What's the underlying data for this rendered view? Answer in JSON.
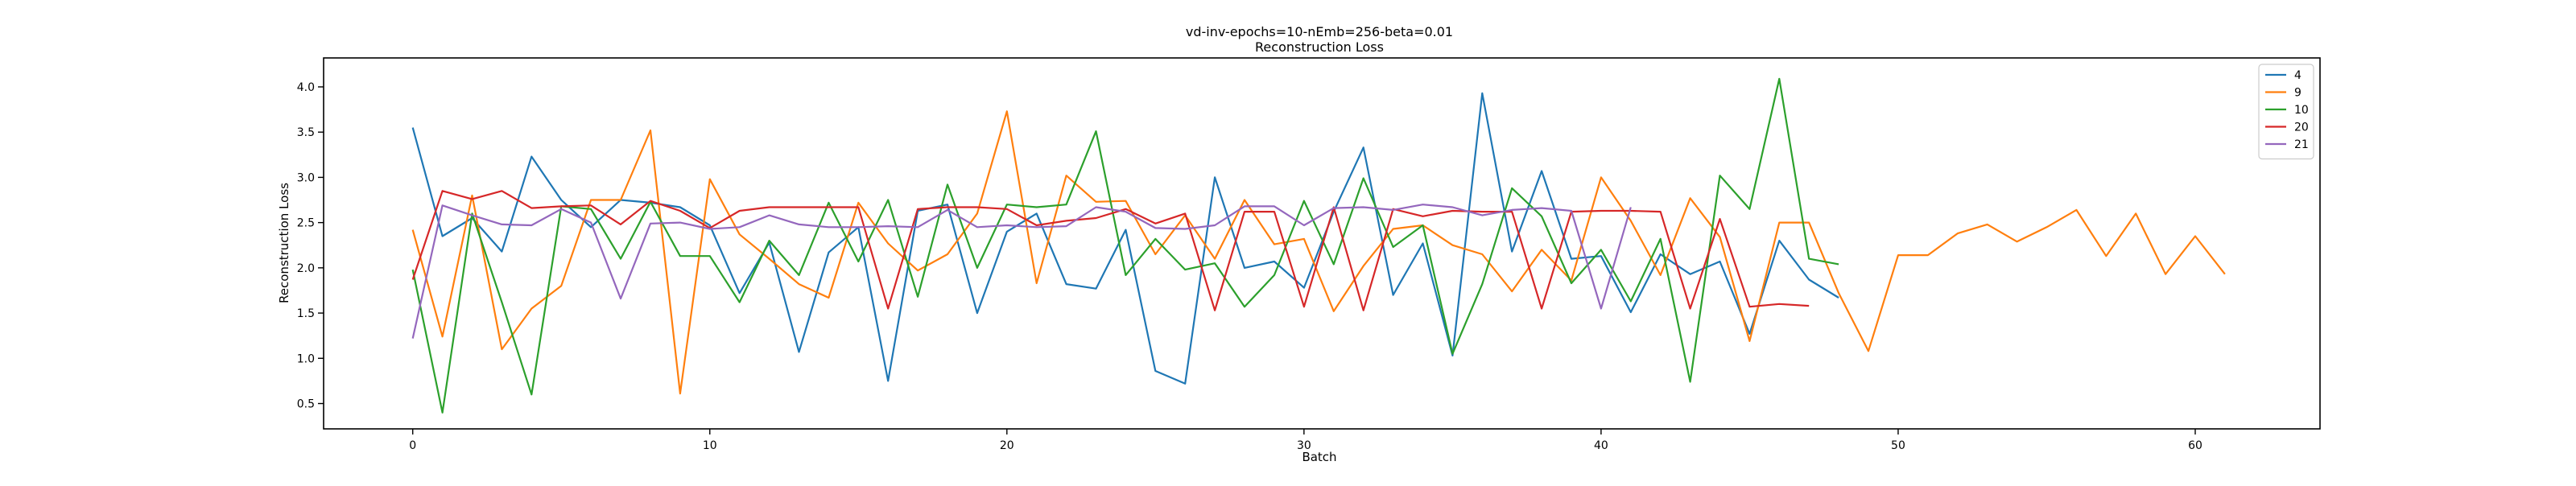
{
  "chart_data": {
    "type": "line",
    "title": "vd-inv-epochs=10-nEmb=256-beta=0.01",
    "subtitle": "Reconstruction Loss",
    "xlabel": "Batch",
    "ylabel": "Reconstruction Loss",
    "xlim": [
      -3,
      64.2
    ],
    "ylim": [
      0.22,
      4.32
    ],
    "xticks": [
      0,
      10,
      20,
      30,
      40,
      50,
      60
    ],
    "yticks": [
      0.5,
      1.0,
      1.5,
      2.0,
      2.5,
      3.0,
      3.5,
      4.0
    ],
    "grid": false,
    "legend_position": "top-right",
    "series": [
      {
        "name": "4",
        "color": "#1f77b4",
        "values": [
          3.55,
          2.35,
          2.55,
          2.18,
          3.23,
          2.75,
          2.45,
          2.75,
          2.72,
          2.67,
          2.47,
          1.72,
          2.28,
          1.07,
          2.17,
          2.45,
          0.75,
          2.63,
          2.7,
          1.5,
          2.4,
          2.6,
          1.82,
          1.77,
          2.42,
          0.86,
          0.72,
          3.0,
          2.0,
          2.07,
          1.78,
          2.62,
          3.33,
          1.7,
          2.27,
          1.03,
          3.93,
          2.18,
          3.07,
          2.1,
          2.13,
          1.51,
          2.15,
          1.93,
          2.07,
          1.27,
          2.3,
          1.87,
          1.67
        ]
      },
      {
        "name": "9",
        "color": "#ff7f0e",
        "values": [
          2.42,
          1.24,
          2.8,
          1.1,
          1.55,
          1.8,
          2.75,
          2.75,
          3.52,
          0.61,
          2.98,
          2.37,
          2.1,
          1.82,
          1.67,
          2.72,
          2.27,
          1.97,
          2.15,
          2.6,
          3.73,
          1.83,
          3.02,
          2.73,
          2.74,
          2.15,
          2.58,
          2.1,
          2.75,
          2.26,
          2.32,
          1.52,
          2.02,
          2.43,
          2.47,
          2.25,
          2.15,
          1.74,
          2.2,
          1.86,
          3.0,
          2.52,
          1.92,
          2.77,
          2.34,
          1.19,
          2.5,
          2.5,
          1.72,
          1.08,
          2.14,
          2.14,
          2.38,
          2.48,
          2.29,
          2.45,
          2.64,
          2.13,
          2.6,
          1.93,
          2.35,
          1.93
        ]
      },
      {
        "name": "10",
        "color": "#2ca02c",
        "values": [
          1.98,
          0.4,
          2.6,
          1.62,
          0.6,
          2.68,
          2.65,
          2.1,
          2.73,
          2.13,
          2.13,
          1.62,
          2.3,
          1.92,
          2.72,
          2.07,
          2.75,
          1.68,
          2.92,
          2.0,
          2.7,
          2.67,
          2.7,
          3.51,
          1.92,
          2.32,
          1.98,
          2.05,
          1.57,
          1.92,
          2.74,
          2.04,
          2.99,
          2.23,
          2.47,
          1.05,
          1.82,
          2.88,
          2.57,
          1.83,
          2.2,
          1.63,
          2.32,
          0.74,
          3.02,
          2.65,
          4.09,
          2.1,
          2.04
        ]
      },
      {
        "name": "20",
        "color": "#d62728",
        "values": [
          1.87,
          2.85,
          2.76,
          2.85,
          2.66,
          2.68,
          2.69,
          2.48,
          2.74,
          2.63,
          2.44,
          2.63,
          2.67,
          2.67,
          2.67,
          2.67,
          1.55,
          2.65,
          2.67,
          2.67,
          2.65,
          2.47,
          2.52,
          2.55,
          2.65,
          2.49,
          2.6,
          1.53,
          2.62,
          2.62,
          1.57,
          2.67,
          1.53,
          2.65,
          2.57,
          2.63,
          2.62,
          2.62,
          1.55,
          2.62,
          2.63,
          2.63,
          2.62,
          1.55,
          2.54,
          1.57,
          1.6,
          1.58
        ]
      },
      {
        "name": "21",
        "color": "#9467bd",
        "values": [
          1.22,
          2.69,
          2.58,
          2.48,
          2.47,
          2.65,
          2.5,
          1.66,
          2.49,
          2.5,
          2.43,
          2.45,
          2.58,
          2.48,
          2.45,
          2.45,
          2.46,
          2.45,
          2.64,
          2.45,
          2.47,
          2.45,
          2.46,
          2.67,
          2.62,
          2.44,
          2.43,
          2.47,
          2.68,
          2.68,
          2.47,
          2.66,
          2.67,
          2.64,
          2.7,
          2.67,
          2.58,
          2.64,
          2.66,
          2.63,
          1.55,
          2.67
        ]
      }
    ]
  }
}
